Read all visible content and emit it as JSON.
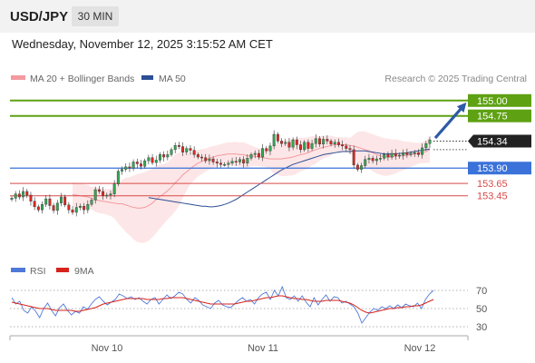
{
  "header": {
    "symbol": "USD/JPY",
    "timeframe": "30 MIN"
  },
  "timestamp": "Wednesday, November 12, 2025 3:15:52 AM CET",
  "legend": {
    "ma_bb": "MA 20 + Bollinger Bands",
    "ma50": "MA 50"
  },
  "copyright": "Research © 2025 Trading Central",
  "colors": {
    "up": "#33a853",
    "down": "#e0271f",
    "ma50": "#2c4f93",
    "ma20": "#f39aa0",
    "band": "#fde2e3",
    "resistance": "#5ea113",
    "support": "#d94a4a",
    "pivot": "#3a72d9",
    "arrow": "#2e5aa6",
    "rsi": "#4f79d8",
    "rsi_ma": "#d6231c"
  },
  "chart_data": [
    {
      "type": "candlestick",
      "title": "",
      "y_range": [
        152.5,
        155.1
      ],
      "x_labels": [
        "Nov 10",
        "Nov 11",
        "Nov 12"
      ],
      "current_price": "154.34",
      "levels": [
        {
          "value": 155.0,
          "label": "155.00",
          "kind": "resistance"
        },
        {
          "value": 154.75,
          "label": "154.75",
          "kind": "resistance"
        },
        {
          "value": 154.34,
          "label": "154.34",
          "kind": "current"
        },
        {
          "value": 153.9,
          "label": "153.90",
          "kind": "pivot"
        },
        {
          "value": 153.65,
          "label": "153.65",
          "kind": "support"
        },
        {
          "value": 153.45,
          "label": "153.45",
          "kind": "support"
        }
      ],
      "close_series": [
        153.41,
        153.48,
        153.43,
        153.52,
        153.46,
        153.36,
        153.27,
        153.22,
        153.31,
        153.4,
        153.29,
        153.21,
        153.33,
        153.43,
        153.3,
        153.22,
        153.18,
        153.26,
        153.28,
        153.22,
        153.31,
        153.38,
        153.55,
        153.52,
        153.45,
        153.46,
        153.48,
        153.64,
        153.85,
        153.88,
        153.92,
        153.9,
        154.0,
        153.97,
        153.93,
        154.02,
        154.07,
        153.99,
        154.03,
        154.12,
        154.08,
        154.12,
        154.2,
        154.27,
        154.25,
        154.16,
        154.22,
        154.19,
        154.12,
        154.08,
        154.07,
        154.02,
        154.05,
        154.0,
        153.98,
        153.96,
        153.96,
        153.98,
        154.01,
        154.0,
        154.04,
        153.98,
        154.06,
        154.12,
        154.14,
        154.08,
        154.22,
        154.18,
        154.26,
        154.45,
        154.34,
        154.3,
        154.32,
        154.24,
        154.36,
        154.28,
        154.2,
        154.32,
        154.22,
        154.3,
        154.38,
        154.29,
        154.37,
        154.34,
        154.29,
        154.32,
        154.28,
        154.26,
        154.22,
        154.2,
        153.95,
        153.88,
        153.94,
        154.04,
        154.06,
        154.02,
        154.05,
        154.06,
        154.12,
        154.08,
        154.14,
        154.1,
        154.11,
        154.15,
        154.12,
        154.14,
        154.15,
        154.12,
        154.23,
        154.3,
        154.36
      ],
      "series": [
        {
          "name": "MA 20 + Bollinger Bands",
          "values": [
            153.47,
            153.46,
            153.45,
            153.44,
            153.43,
            153.41,
            153.39,
            153.37,
            153.36,
            153.35,
            153.34,
            153.33,
            153.32,
            153.32,
            153.3,
            153.28,
            153.26,
            153.25,
            153.25,
            153.26,
            153.29,
            153.33,
            153.39,
            153.44,
            153.48,
            153.53,
            153.59,
            153.66,
            153.72,
            153.79,
            153.84,
            153.89,
            153.94,
            153.98,
            154.01,
            154.03,
            154.06,
            154.08,
            154.1,
            154.11,
            154.12,
            154.13,
            154.13,
            154.13,
            154.12,
            154.12,
            154.1,
            154.1,
            154.09,
            154.08,
            154.07,
            154.06,
            154.05,
            154.05,
            154.05,
            154.05,
            154.06,
            154.07,
            154.08,
            154.1,
            154.12,
            154.13,
            154.15,
            154.18,
            154.2,
            154.22,
            154.24,
            154.25,
            154.27,
            154.28,
            154.28,
            154.28,
            154.28,
            154.27,
            154.26,
            154.24,
            154.22,
            154.2,
            154.18,
            154.15,
            154.12,
            154.1,
            154.08,
            154.08,
            154.08,
            154.09,
            154.1,
            154.1,
            154.11,
            154.12,
            154.13,
            154.14,
            154.15,
            154.17,
            154.2
          ]
        },
        {
          "name": "MA 50",
          "values": [
            153.42,
            153.41,
            153.4,
            153.39,
            153.38,
            153.37,
            153.36,
            153.35,
            153.34,
            153.33,
            153.32,
            153.31,
            153.3,
            153.29,
            153.28,
            153.28,
            153.27,
            153.27,
            153.28,
            153.29,
            153.31,
            153.33,
            153.36,
            153.39,
            153.43,
            153.47,
            153.51,
            153.55,
            153.59,
            153.63,
            153.67,
            153.71,
            153.75,
            153.79,
            153.83,
            153.87,
            153.9,
            153.93,
            153.96,
            153.98,
            154.0,
            154.02,
            154.04,
            154.06,
            154.08,
            154.1,
            154.12,
            154.13,
            154.14,
            154.15,
            154.16,
            154.17,
            154.17,
            154.17,
            154.18,
            154.18,
            154.18,
            154.18,
            154.17,
            154.16,
            154.15,
            154.14,
            154.13,
            154.13,
            154.13,
            154.13,
            154.14,
            154.14,
            154.15,
            154.16,
            154.17,
            154.18,
            154.19,
            154.2,
            154.21
          ]
        }
      ]
    },
    {
      "type": "line",
      "title": "",
      "y_range": [
        20,
        80
      ],
      "y_ticks": [
        "70",
        "50",
        "30"
      ],
      "x_labels": [
        "Nov 10",
        "Nov 11",
        "Nov 12"
      ],
      "series": [
        {
          "name": "RSI",
          "values": [
            62,
            55,
            58,
            48,
            45,
            52,
            47,
            40,
            50,
            56,
            48,
            42,
            51,
            55,
            48,
            43,
            47,
            45,
            52,
            49,
            55,
            60,
            63,
            58,
            54,
            57,
            60,
            66,
            64,
            61,
            63,
            60,
            62,
            58,
            55,
            60,
            62,
            55,
            60,
            65,
            61,
            64,
            68,
            66,
            60,
            56,
            62,
            59,
            54,
            52,
            50,
            56,
            59,
            54,
            52,
            51,
            55,
            59,
            62,
            58,
            60,
            55,
            62,
            66,
            68,
            60,
            70,
            64,
            74,
            62,
            60,
            64,
            58,
            64,
            57,
            52,
            62,
            54,
            60,
            65,
            58,
            63,
            62,
            56,
            58,
            55,
            52,
            45,
            34,
            40,
            46,
            50,
            48,
            52,
            50,
            53,
            50,
            54,
            51,
            55,
            53,
            52,
            56,
            50,
            60,
            66,
            70
          ]
        },
        {
          "name": "9MA",
          "values": [
            57,
            56,
            55,
            54,
            53,
            52,
            51,
            50,
            50,
            50,
            49,
            48,
            48,
            48,
            48,
            48,
            47,
            47,
            48,
            49,
            50,
            51,
            53,
            55,
            56,
            57,
            58,
            59,
            60,
            61,
            61,
            61,
            61,
            61,
            60,
            60,
            60,
            60,
            61,
            61,
            62,
            62,
            62,
            62,
            61,
            60,
            59,
            58,
            57,
            56,
            55,
            55,
            55,
            55,
            55,
            55,
            55,
            56,
            57,
            58,
            58,
            59,
            60,
            61,
            62,
            62,
            63,
            64,
            64,
            63,
            62,
            61,
            61,
            60,
            60,
            59,
            58,
            58,
            58,
            59,
            59,
            59,
            59,
            58,
            57,
            56,
            54,
            51,
            48,
            46,
            45,
            46,
            47,
            48,
            49,
            50,
            50,
            51,
            51,
            52,
            52,
            53,
            53,
            54,
            56,
            58,
            60
          ]
        }
      ]
    }
  ]
}
